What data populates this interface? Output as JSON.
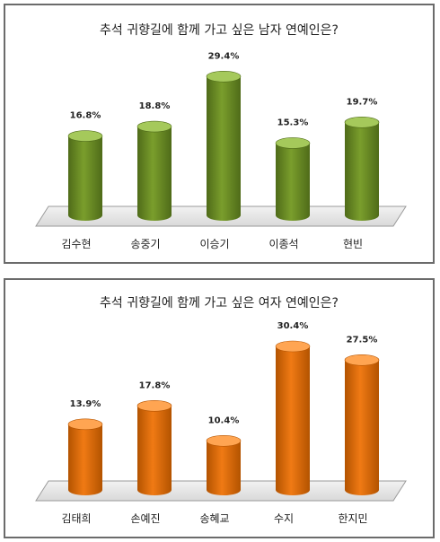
{
  "chart_data": [
    {
      "type": "bar",
      "title": "추석 귀향길에 함께 가고 싶은 남자 연예인은?",
      "categories": [
        "김수현",
        "송중기",
        "이승기",
        "이종석",
        "현빈"
      ],
      "values": [
        16.8,
        18.8,
        29.4,
        15.3,
        19.7
      ],
      "data_labels": [
        "16.8%",
        "18.8%",
        "29.4%",
        "15.3%",
        "19.7%"
      ],
      "unit": "%",
      "ylim": [
        0,
        35
      ],
      "grid": false,
      "legend": "none",
      "colors": {
        "top": "#a5c95b",
        "body": "#7a9e2c",
        "dark": "#4f6b19"
      }
    },
    {
      "type": "bar",
      "title": "추석 귀향길에 함께 가고 싶은 여자 연예인은?",
      "categories": [
        "김태희",
        "손예진",
        "송혜교",
        "수지",
        "한지민"
      ],
      "values": [
        13.9,
        17.8,
        10.4,
        30.4,
        27.5
      ],
      "data_labels": [
        "13.9%",
        "17.8%",
        "10.4%",
        "30.4%",
        "27.5%"
      ],
      "unit": "%",
      "ylim": [
        0,
        35
      ],
      "grid": false,
      "legend": "none",
      "colors": {
        "top": "#ffa552",
        "body": "#f07a14",
        "dark": "#b35300"
      }
    }
  ]
}
